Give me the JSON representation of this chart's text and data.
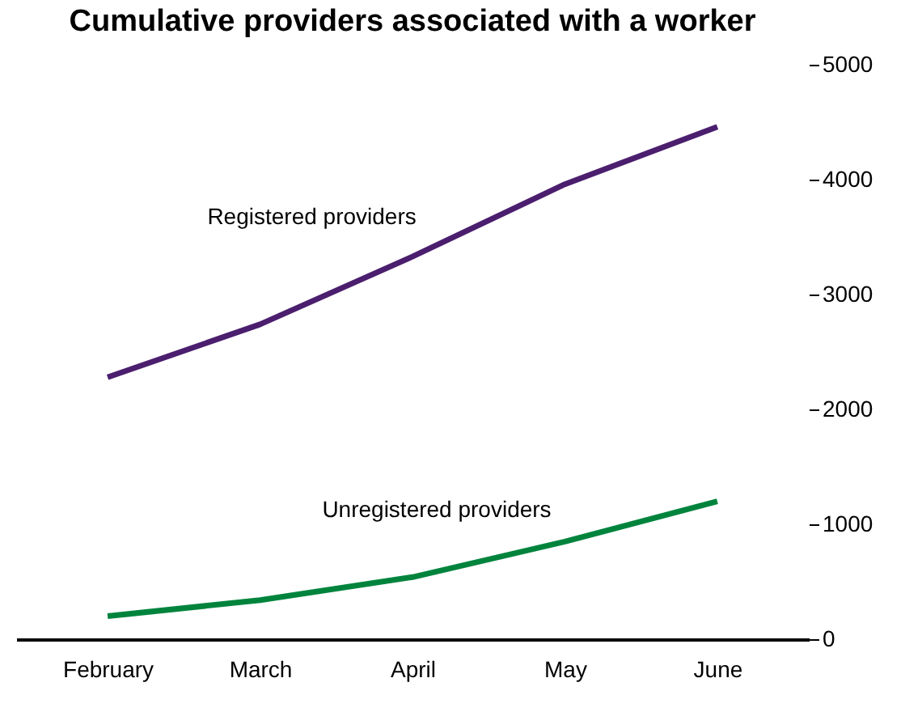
{
  "chart_data": {
    "type": "line",
    "title": "Cumulative providers associated with a worker",
    "categories": [
      "February",
      "March",
      "April",
      "May",
      "June"
    ],
    "series": [
      {
        "name": "Registered providers",
        "color": "#4b1e6e",
        "values": [
          2280,
          2740,
          3330,
          3960,
          4460
        ]
      },
      {
        "name": "Unregistered providers",
        "color": "#00843d",
        "values": [
          200,
          340,
          540,
          850,
          1200
        ]
      }
    ],
    "ylim": [
      0,
      5000
    ],
    "yticks": [
      0,
      1000,
      2000,
      3000,
      4000,
      5000
    ],
    "grid": false,
    "legend": false,
    "line_style": "solid",
    "marker": "none"
  }
}
